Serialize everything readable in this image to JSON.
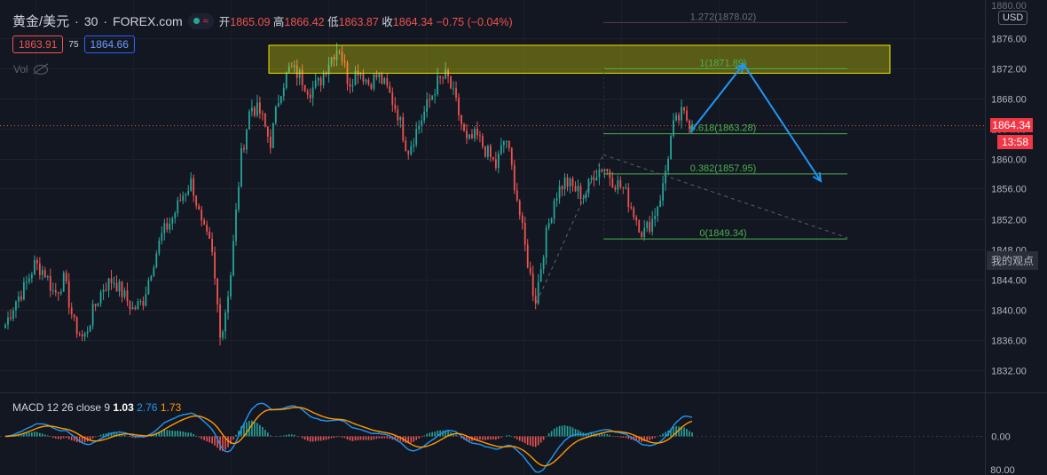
{
  "header": {
    "symbol": "黄金/美元",
    "separator": "·",
    "interval": "30",
    "source": "FOREX.com",
    "pill_glyph": "≈",
    "open_label": "开",
    "open": "1865.09",
    "high_label": "高",
    "high": "1866.42",
    "low_label": "低",
    "low": "1863.87",
    "close_label": "收",
    "close": "1864.34",
    "change": "−0.75 (−0.04%)"
  },
  "prices": {
    "sell": "1863.91",
    "spread": "75",
    "buy": "1864.66"
  },
  "volume": {
    "label": "Vol"
  },
  "macd": {
    "label": "MACD",
    "params": "12 26 close 9",
    "hist": "1.03",
    "macd": "2.76",
    "signal": "1.73"
  },
  "axis": {
    "currency": "USD",
    "last_price": "1864.34",
    "countdown": "13:58",
    "my_view": "我的观点",
    "top_partial": "1880.00",
    "macd_zero": "0.00",
    "macd_bottom": "80.00"
  },
  "colors": {
    "up": "#26a69a",
    "down": "#ef5350",
    "fib": "#4caf50",
    "arrow": "#2196f3",
    "zone": "#eef000",
    "macd_line": "#2196f3",
    "signal_line": "#ff9800"
  },
  "chart_data": {
    "type": "candlestick",
    "title": "黄金/美元 · 30 · FOREX.com",
    "ylim": [
      1829,
      1881
    ],
    "y_ticks": [
      1876,
      1872,
      1868,
      1864,
      1860,
      1856,
      1852,
      1848,
      1844,
      1840,
      1836,
      1832
    ],
    "path": [
      1838,
      1841,
      1843,
      1846,
      1845,
      1842,
      1844,
      1838,
      1836,
      1840,
      1843,
      1844,
      1842,
      1840,
      1841,
      1846,
      1850,
      1852,
      1855,
      1857,
      1851,
      1848,
      1836,
      1845,
      1860,
      1867,
      1866,
      1862,
      1869,
      1872,
      1871,
      1869,
      1870,
      1873,
      1875,
      1870,
      1872,
      1870,
      1871,
      1869,
      1866,
      1861,
      1864,
      1867,
      1870,
      1871,
      1867,
      1862,
      1863,
      1861,
      1859,
      1863,
      1856,
      1848,
      1841,
      1849,
      1855,
      1857,
      1856,
      1855,
      1858,
      1859,
      1857,
      1856,
      1853,
      1850,
      1852,
      1856,
      1864,
      1866,
      1864.34
    ],
    "fibonacci": [
      {
        "ratio": "1.272",
        "price": "1878.02"
      },
      {
        "ratio": "1",
        "price": "1871.89"
      },
      {
        "ratio": "0.618",
        "price": "1863.28"
      },
      {
        "ratio": "0.382",
        "price": "1857.95"
      },
      {
        "ratio": "0",
        "price": "1849.34"
      }
    ],
    "resistance_zone": [
      1871.3,
      1875.0
    ],
    "forecast": [
      1863.5,
      1872.5,
      1857.0
    ],
    "macd_ylim": [
      -6,
      6
    ]
  }
}
